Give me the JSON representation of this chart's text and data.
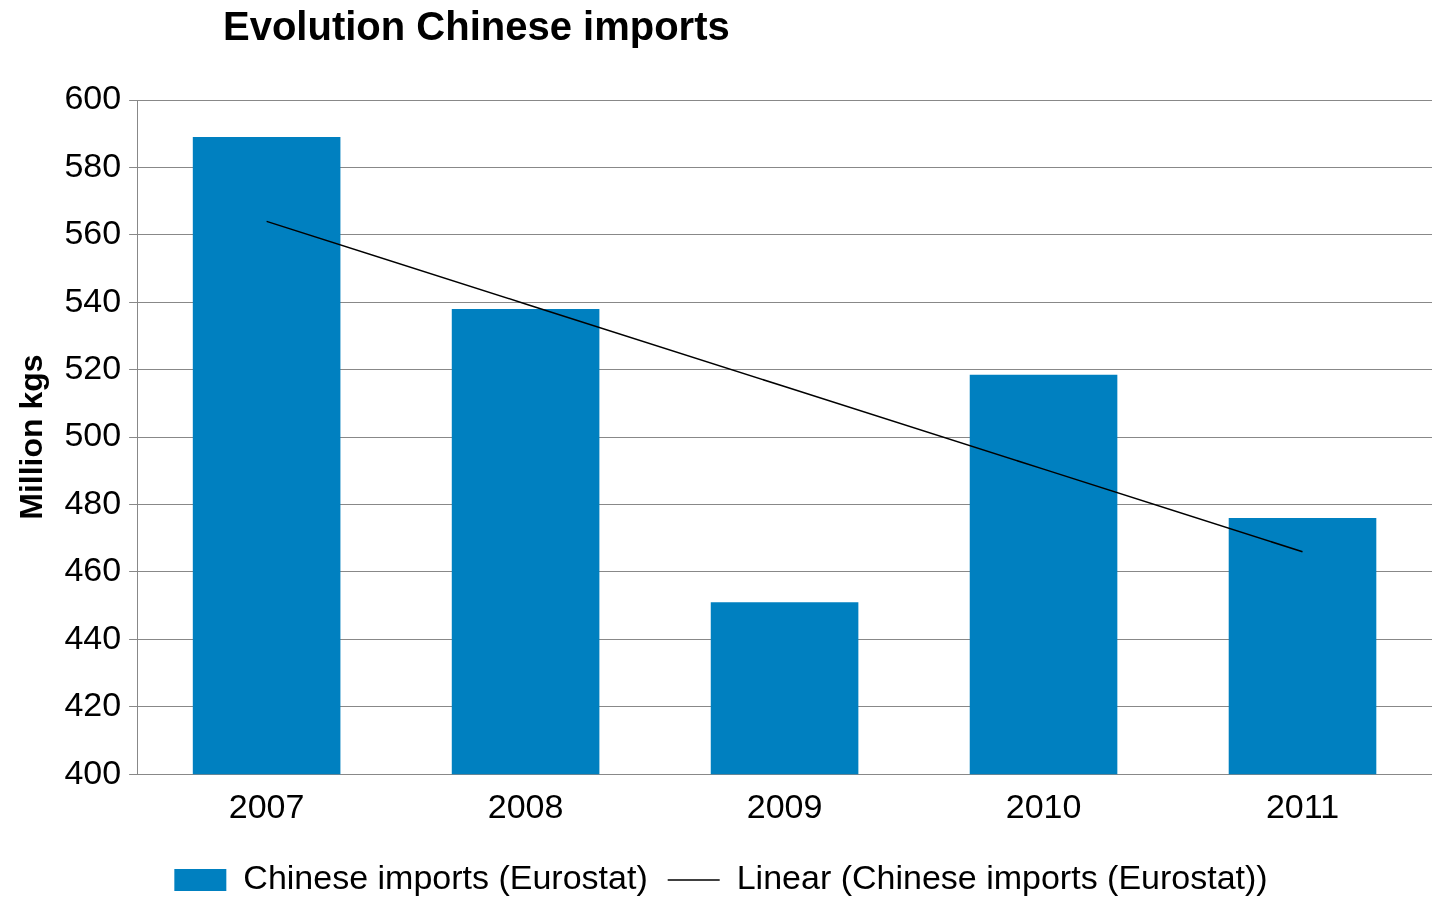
{
  "chart_data": {
    "type": "bar",
    "title": "Evolution Chinese imports",
    "ylabel": "Million kgs",
    "categories": [
      "2007",
      "2008",
      "2009",
      "2010",
      "2011"
    ],
    "series": [
      {
        "name": "Chinese imports (Eurostat)",
        "color": "#0080c0",
        "values": [
          589,
          538,
          451,
          518.5,
          476
        ]
      },
      {
        "name": "Linear (Chinese imports (Eurostat))",
        "type": "line",
        "color": "#000000",
        "values": [
          564,
          539.5,
          515,
          490.5,
          466
        ]
      }
    ],
    "ylim": [
      400,
      600
    ],
    "yticks": [
      400,
      420,
      440,
      460,
      480,
      500,
      520,
      540,
      560,
      580,
      600
    ],
    "grid": "y",
    "legend": "bottom",
    "marker": "none"
  }
}
